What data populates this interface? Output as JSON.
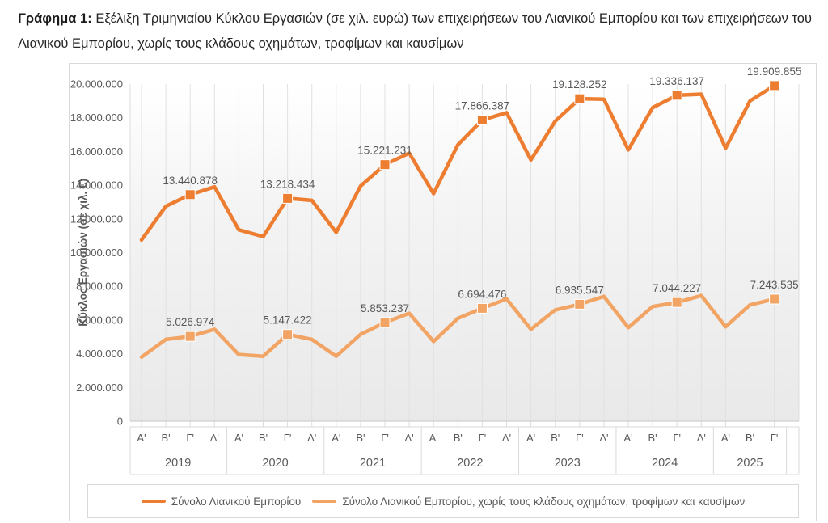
{
  "title": {
    "prefix": "Γράφημα 1",
    "separator": ": ",
    "text": "Εξέλιξη Τριμηνιαίου Κύκλου Εργασιών (σε χιλ. ευρώ) των επιχειρήσεων του Λιανικού Εμπορίου και των επιχειρήσεων του Λιανικού Εμπορίου, χωρίς τους κλάδους οχημάτων, τροφίμων και καυσίμων"
  },
  "chart_data": {
    "type": "line",
    "ylabel": "Κύκλος Εργασιών (σε χιλ. €)",
    "ylim": [
      0,
      20000000
    ],
    "y_ticks": [
      0,
      2000000,
      4000000,
      6000000,
      8000000,
      10000000,
      12000000,
      14000000,
      16000000,
      18000000,
      20000000
    ],
    "y_tick_labels": [
      "0",
      "2.000.000",
      "4.000.000",
      "6.000.000",
      "8.000.000",
      "10.000.000",
      "12.000.000",
      "14.000.000",
      "16.000.000",
      "18.000.000",
      "20.000.000"
    ],
    "grid": "vertical-only",
    "legend_position": "bottom",
    "groups": [
      {
        "year": "2019",
        "quarters": [
          "Α'",
          "Β'",
          "Γ'",
          "Δ'"
        ]
      },
      {
        "year": "2020",
        "quarters": [
          "Α'",
          "Β'",
          "Γ'",
          "Δ'"
        ]
      },
      {
        "year": "2021",
        "quarters": [
          "Α'",
          "Β'",
          "Γ'",
          "Δ'"
        ]
      },
      {
        "year": "2022",
        "quarters": [
          "Α'",
          "Β'",
          "Γ'",
          "Δ'"
        ]
      },
      {
        "year": "2023",
        "quarters": [
          "Α'",
          "Β'",
          "Γ'",
          "Δ'"
        ]
      },
      {
        "year": "2024",
        "quarters": [
          "Α'",
          "Β'",
          "Γ'",
          "Δ'"
        ]
      },
      {
        "year": "2025",
        "quarters": [
          "Α'",
          "Β'",
          "Γ'"
        ]
      }
    ],
    "series": [
      {
        "name": "Σύνολο Λιανικού Εμπορίου",
        "color": "#ED7D31",
        "values": [
          10750000,
          12750000,
          13440878,
          13900000,
          11350000,
          10950000,
          13218434,
          13100000,
          11200000,
          13950000,
          15221231,
          15900000,
          13500000,
          16400000,
          17866387,
          18300000,
          15500000,
          17800000,
          19128252,
          19100000,
          16100000,
          18600000,
          19336137,
          19400000,
          16200000,
          19000000,
          19909855
        ],
        "point_labels": {
          "2": "13.440.878",
          "6": "13.218.434",
          "10": "15.221.231",
          "14": "17.866.387",
          "18": "19.128.252",
          "22": "19.336.137",
          "26": "19.909.855"
        }
      },
      {
        "name": "Σύνολο Λιανικού Εμπορίου, χωρίς τους κλάδους οχημάτων, τροφίμων και καυσίμων",
        "color": "#F2A464",
        "values": [
          3800000,
          4850000,
          5026974,
          5450000,
          3950000,
          3850000,
          5147422,
          4850000,
          3850000,
          5150000,
          5853237,
          6400000,
          4730000,
          6100000,
          6694476,
          7250000,
          5450000,
          6600000,
          6935547,
          7400000,
          5550000,
          6800000,
          7044227,
          7450000,
          5600000,
          6900000,
          7243535
        ],
        "point_labels": {
          "2": "5.026.974",
          "6": "5.147.422",
          "10": "5.853.237",
          "14": "6.694.476",
          "18": "6.935.547",
          "22": "7.044.227",
          "26": "7.243.535"
        }
      }
    ]
  }
}
